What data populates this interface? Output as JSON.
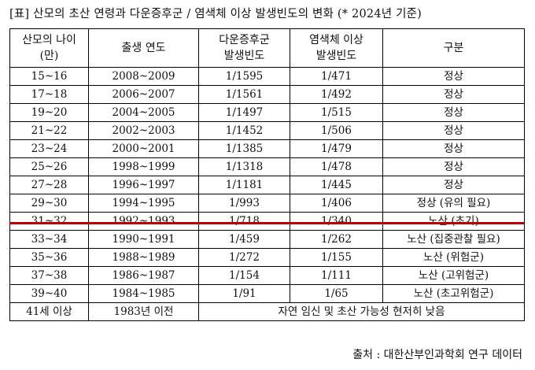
{
  "title": "[표] 산모의 초산 연령과 다운증후군 / 염색체 이상 발생빈도의 변화 (* 2024년 기준)",
  "headers": [
    [
      "산모의 나이",
      "(만)"
    ],
    [
      "출생 연도"
    ],
    [
      "다운증후군",
      "발생빈도"
    ],
    [
      "염색체 이상",
      "발생빈도"
    ],
    [
      "구분"
    ]
  ],
  "rows": [
    [
      "15~16",
      "2008~2009",
      "1/1595",
      "1/471",
      "정상"
    ],
    [
      "17~18",
      "2006~2007",
      "1/1561",
      "1/492",
      "정상"
    ],
    [
      "19~20",
      "2004~2005",
      "1/1497",
      "1/515",
      "정상"
    ],
    [
      "21~22",
      "2002~2003",
      "1/1452",
      "1/506",
      "정상"
    ],
    [
      "23~24",
      "2000~2001",
      "1/1385",
      "1/479",
      "정상"
    ],
    [
      "25~26",
      "1998~1999",
      "1/1318",
      "1/478",
      "정상"
    ],
    [
      "27~28",
      "1996~1997",
      "1/1181",
      "1/445",
      "정상"
    ],
    [
      "29~30",
      "1994~1995",
      "1/993",
      "1/406",
      "정상 (유의 필요)"
    ],
    [
      "31~32",
      "1992~1993",
      "1/718",
      "1/340",
      "노산 (초기)"
    ],
    [
      "33~34",
      "1990~1991",
      "1/459",
      "1/262",
      "노산 (집중관찰 필요)"
    ],
    [
      "35~36",
      "1988~1989",
      "1/272",
      "1/155",
      "노산 (위험군)"
    ],
    [
      "37~38",
      "1986~1987",
      "1/154",
      "1/111",
      "노산 (고위험군)"
    ],
    [
      "39~40",
      "1984~1985",
      "1/91",
      "1/65",
      "노산 (초고위험군)"
    ]
  ],
  "last_row": [
    "41세 이상",
    "1983년 이전",
    "자연 임신 및 초산 가능성 현저히 낮음"
  ],
  "source": "출처 : 대한산부인과학회 연구 데이터",
  "colors": {
    "divider": "#c00000",
    "border": "#000000",
    "text": "#111111"
  }
}
